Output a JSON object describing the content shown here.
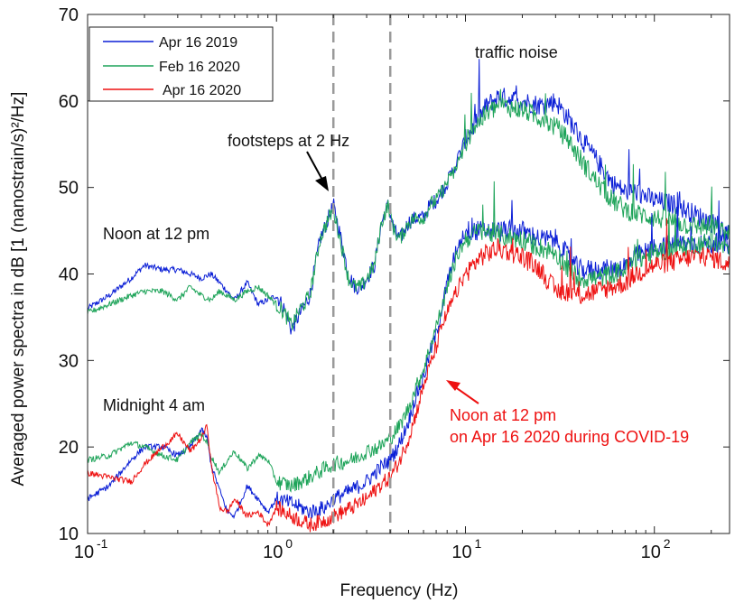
{
  "chart_data": {
    "type": "line",
    "title": "",
    "xlabel": "Frequency (Hz)",
    "ylabel": "Averaged power spectra in dB [1 (nanostrain/s)²/Hz]",
    "xscale": "log",
    "xlim": [
      0.1,
      250
    ],
    "ylim": [
      10,
      70
    ],
    "yticks": [
      10,
      20,
      30,
      40,
      50,
      60,
      70
    ],
    "xticks": [
      {
        "base": "10",
        "exp": "-1",
        "value": 0.1
      },
      {
        "base": "10",
        "exp": "0",
        "value": 1
      },
      {
        "base": "10",
        "exp": "1",
        "value": 10
      },
      {
        "base": "10",
        "exp": "2",
        "value": 100
      }
    ],
    "grid": false,
    "legend_position": "top-left",
    "legend": [
      {
        "name": "Apr 16 2019",
        "color": "#0b1fd6"
      },
      {
        "name": "Feb 16 2020",
        "color": "#1fa45a"
      },
      {
        "name": "Apr 16 2020",
        "color": "#ee1111"
      }
    ],
    "vertical_dashed_lines": [
      2,
      4
    ],
    "annotations": {
      "traffic": "traffic noise",
      "footsteps": "footsteps at 2 Hz",
      "noon": "Noon at 12 pm",
      "midnight": "Midnight 4 am",
      "covid_line1": "Noon at 12 pm",
      "covid_line2": "on Apr 16 2020 during COVID-19"
    },
    "series": [
      {
        "name": "Apr 16 2019",
        "group": "noon",
        "color": "#0b1fd6",
        "x": [
          0.1,
          0.13,
          0.17,
          0.2,
          0.25,
          0.3,
          0.35,
          0.4,
          0.45,
          0.5,
          0.6,
          0.7,
          0.8,
          0.9,
          1.0,
          1.1,
          1.2,
          1.3,
          1.5,
          1.7,
          1.85,
          2.0,
          2.2,
          2.4,
          2.6,
          2.8,
          3.0,
          3.3,
          3.6,
          3.9,
          4.2,
          4.5,
          5.0,
          5.5,
          6.0,
          6.5,
          7.0,
          8.0,
          9.0,
          10,
          11,
          13,
          15,
          20,
          25,
          30,
          35,
          40,
          50,
          60,
          70,
          80,
          100,
          130,
          160,
          200,
          250
        ],
        "y": [
          36,
          37.5,
          39.5,
          41,
          40.5,
          40.5,
          40,
          39.5,
          40,
          39,
          37,
          39,
          36.5,
          37,
          37.5,
          36,
          33.5,
          35,
          37.5,
          44,
          46,
          48,
          44,
          40,
          38.5,
          38.5,
          39.5,
          41,
          46,
          48,
          45,
          44,
          46,
          46.5,
          46.5,
          48,
          48.5,
          50.5,
          53,
          55.5,
          57,
          59.5,
          60.5,
          60,
          59.5,
          60,
          58,
          56,
          53,
          50.5,
          49.5,
          49.5,
          48.5,
          48,
          47,
          46,
          44.5
        ]
      },
      {
        "name": "Feb 16 2020",
        "group": "noon",
        "color": "#1fa45a",
        "x": [
          0.1,
          0.13,
          0.17,
          0.2,
          0.25,
          0.3,
          0.35,
          0.4,
          0.45,
          0.5,
          0.6,
          0.7,
          0.8,
          0.9,
          1.0,
          1.1,
          1.2,
          1.3,
          1.5,
          1.7,
          1.85,
          2.0,
          2.2,
          2.4,
          2.6,
          2.8,
          3.0,
          3.3,
          3.6,
          3.9,
          4.2,
          4.5,
          5.0,
          5.5,
          6.0,
          6.5,
          7.0,
          8.0,
          9.0,
          10,
          11,
          13,
          15,
          20,
          25,
          30,
          35,
          40,
          50,
          60,
          70,
          80,
          100,
          130,
          160,
          200,
          250
        ],
        "y": [
          35.5,
          36.5,
          37.5,
          38,
          38,
          37,
          38.5,
          37.5,
          37,
          38,
          37,
          38,
          38.5,
          37.5,
          36.5,
          35.5,
          34,
          35.5,
          37.5,
          44,
          46,
          47.5,
          43.5,
          39.5,
          38.5,
          38.5,
          39.5,
          41,
          46,
          48,
          45,
          44,
          46,
          46.5,
          46.5,
          48,
          48.5,
          50.5,
          52.5,
          55,
          57,
          58.5,
          59.5,
          59,
          58,
          57,
          55.5,
          53.5,
          50.5,
          48.5,
          47.5,
          47,
          46.5,
          46,
          45.5,
          45.5,
          44.5
        ]
      },
      {
        "name": "Apr 16 2019",
        "group": "midnight",
        "color": "#0b1fd6",
        "x": [
          0.1,
          0.13,
          0.17,
          0.2,
          0.25,
          0.3,
          0.35,
          0.4,
          0.43,
          0.45,
          0.5,
          0.55,
          0.6,
          0.7,
          0.8,
          0.9,
          1.0,
          1.2,
          1.5,
          1.8,
          2.0,
          2.5,
          3.0,
          3.5,
          4.0,
          4.5,
          5.0,
          5.5,
          6.0,
          6.5,
          7.0,
          7.5,
          8.0,
          9.0,
          10,
          12,
          15,
          20,
          25,
          30,
          35,
          40,
          50,
          60,
          70,
          80,
          100,
          130,
          160,
          200,
          250
        ],
        "y": [
          14,
          15.5,
          18.5,
          20,
          20,
          19,
          20,
          22,
          21,
          18,
          15,
          12.5,
          12,
          15.5,
          14,
          12.5,
          14,
          13.5,
          12.5,
          13,
          14,
          15,
          16,
          17.5,
          18.5,
          20.5,
          23,
          26,
          28,
          31,
          33,
          36,
          39,
          43,
          45,
          45,
          45,
          45,
          44,
          44,
          42,
          40.5,
          40.5,
          40.5,
          41,
          42,
          43,
          43.5,
          43.5,
          43.5,
          43.5
        ]
      },
      {
        "name": "Feb 16 2020",
        "group": "midnight",
        "color": "#1fa45a",
        "x": [
          0.1,
          0.13,
          0.17,
          0.2,
          0.25,
          0.3,
          0.35,
          0.4,
          0.43,
          0.45,
          0.5,
          0.55,
          0.6,
          0.7,
          0.8,
          0.9,
          1.0,
          1.2,
          1.5,
          1.8,
          2.0,
          2.5,
          3.0,
          3.5,
          4.0,
          4.5,
          5.0,
          5.5,
          6.0,
          6.5,
          7.0,
          7.5,
          8.0,
          9.0,
          10,
          12,
          15,
          20,
          25,
          30,
          35,
          40,
          50,
          60,
          70,
          80,
          100,
          130,
          160,
          200,
          250
        ],
        "y": [
          18.5,
          19,
          20.5,
          20,
          19,
          18.5,
          20.5,
          21.5,
          20.5,
          19,
          17,
          18.5,
          19.5,
          17.5,
          19,
          18.5,
          16,
          15.5,
          16.5,
          17.5,
          18,
          18.5,
          19.5,
          20,
          21,
          22.5,
          24.5,
          27,
          29,
          31.5,
          34,
          36,
          38.5,
          42,
          44,
          45,
          44.5,
          44,
          43,
          42.5,
          40.5,
          39.5,
          39.5,
          40,
          40.5,
          41.5,
          42.5,
          43,
          43.5,
          43.5,
          43
        ]
      },
      {
        "name": "Apr 16 2020",
        "group": "midnight",
        "color": "#ee1111",
        "x": [
          0.1,
          0.13,
          0.17,
          0.2,
          0.25,
          0.3,
          0.35,
          0.4,
          0.43,
          0.45,
          0.5,
          0.55,
          0.6,
          0.7,
          0.8,
          0.9,
          1.0,
          1.2,
          1.5,
          1.8,
          2.0,
          2.5,
          3.0,
          3.5,
          4.0,
          4.5,
          5.0,
          5.5,
          6.0,
          6.5,
          7.0,
          7.5,
          8.0,
          9.0,
          10,
          12,
          15,
          20,
          25,
          30,
          35,
          40,
          50,
          60,
          70,
          80,
          100,
          130,
          160,
          200,
          250
        ],
        "y": [
          17,
          16.5,
          16,
          18,
          20,
          21.5,
          19.5,
          21,
          22.5,
          18,
          13,
          12.5,
          14,
          12,
          12.5,
          11,
          13,
          12,
          11,
          11.5,
          12,
          13,
          14,
          15.5,
          16.5,
          18.5,
          21,
          24,
          27,
          29.5,
          31.5,
          34,
          35.5,
          38,
          40,
          42,
          43,
          42,
          40.5,
          38,
          38,
          37.5,
          38,
          38.5,
          39,
          40,
          41,
          41.5,
          42,
          42,
          41
        ]
      }
    ]
  }
}
